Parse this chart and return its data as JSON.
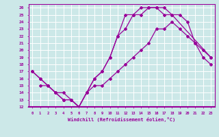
{
  "xlabel": "Windchill (Refroidissement éolien,°C)",
  "bg_color": "#cce8e8",
  "grid_color": "#ffffff",
  "line_color": "#990099",
  "xlim": [
    -0.5,
    23.5
  ],
  "ylim": [
    12,
    26.5
  ],
  "xticks": [
    0,
    1,
    2,
    3,
    4,
    5,
    6,
    7,
    8,
    9,
    10,
    11,
    12,
    13,
    14,
    15,
    16,
    17,
    18,
    19,
    20,
    21,
    22,
    23
  ],
  "yticks": [
    12,
    13,
    14,
    15,
    16,
    17,
    18,
    19,
    20,
    21,
    22,
    23,
    24,
    25,
    26
  ],
  "line1_x": [
    0,
    1,
    2,
    3,
    4,
    5,
    6,
    7,
    8,
    9,
    10,
    11,
    12,
    13,
    14,
    15,
    16,
    17,
    18,
    23
  ],
  "line1_y": [
    17,
    16,
    15,
    14,
    13,
    13,
    12,
    14,
    16,
    17,
    19,
    22,
    25,
    25,
    26,
    26,
    26,
    25,
    25,
    19
  ],
  "line2_x": [
    0,
    1,
    2,
    3,
    4,
    5,
    6,
    7,
    8,
    9,
    10,
    11,
    12,
    13,
    14,
    15,
    16,
    17,
    18,
    19,
    20,
    21,
    22,
    23
  ],
  "line2_y": [
    17,
    16,
    15,
    14,
    13,
    13,
    12,
    14,
    16,
    17,
    19,
    22,
    23,
    25,
    25,
    26,
    26,
    26,
    25,
    25,
    24,
    21,
    20,
    19
  ],
  "line3_x": [
    1,
    2,
    3,
    4,
    5,
    6,
    7,
    8,
    9,
    10,
    11,
    12,
    13,
    14,
    15,
    16,
    17,
    18,
    19,
    20,
    21,
    22,
    23
  ],
  "line3_y": [
    15,
    15,
    14,
    14,
    13,
    12,
    14,
    15,
    15,
    16,
    17,
    18,
    19,
    20,
    21,
    23,
    23,
    24,
    23,
    22,
    21,
    19,
    18
  ]
}
